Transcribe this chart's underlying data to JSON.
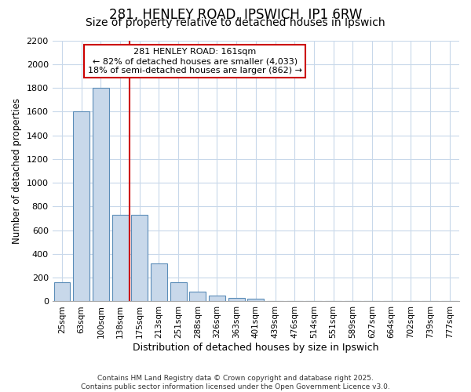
{
  "title": "281, HENLEY ROAD, IPSWICH, IP1 6RW",
  "subtitle": "Size of property relative to detached houses in Ipswich",
  "xlabel": "Distribution of detached houses by size in Ipswich",
  "ylabel": "Number of detached properties",
  "categories": [
    "25sqm",
    "63sqm",
    "100sqm",
    "138sqm",
    "175sqm",
    "213sqm",
    "251sqm",
    "288sqm",
    "326sqm",
    "363sqm",
    "401sqm",
    "439sqm",
    "476sqm",
    "514sqm",
    "551sqm",
    "589sqm",
    "627sqm",
    "664sqm",
    "702sqm",
    "739sqm",
    "777sqm"
  ],
  "values": [
    163,
    1600,
    1800,
    730,
    730,
    320,
    160,
    80,
    50,
    30,
    20,
    0,
    0,
    0,
    0,
    0,
    0,
    0,
    0,
    0,
    0
  ],
  "bar_color": "#c8d8ea",
  "bar_edge_color": "#5b8db8",
  "bg_color": "#ffffff",
  "grid_color": "#c8d8ea",
  "red_line_label": "281 HENLEY ROAD: 161sqm",
  "annotation_line1": "← 82% of detached houses are smaller (4,033)",
  "annotation_line2": "18% of semi-detached houses are larger (862) →",
  "ylim": [
    0,
    2200
  ],
  "yticks": [
    0,
    200,
    400,
    600,
    800,
    1000,
    1200,
    1400,
    1600,
    1800,
    2000,
    2200
  ],
  "footer1": "Contains HM Land Registry data © Crown copyright and database right 2025.",
  "footer2": "Contains public sector information licensed under the Open Government Licence v3.0.",
  "title_fontsize": 12,
  "subtitle_fontsize": 10,
  "annotation_box_color": "#cc0000",
  "red_line_color": "#cc0000",
  "red_line_x": 3.5
}
